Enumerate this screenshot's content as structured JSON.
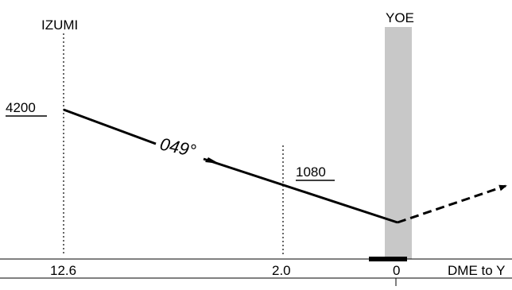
{
  "fixes": {
    "izumi": "IZUMI",
    "yoe": "YOE"
  },
  "altitudes": {
    "izumi_altitude": "4200",
    "mid_altitude": "1080"
  },
  "course": "049°",
  "dme_scale": {
    "izumi_dme": "12.6",
    "mid_dme": "2.0",
    "yoe_dme": "0",
    "axis_label": "DME to Y"
  },
  "colors": {
    "line": "#000000",
    "station_band": "#c8c8c8"
  }
}
